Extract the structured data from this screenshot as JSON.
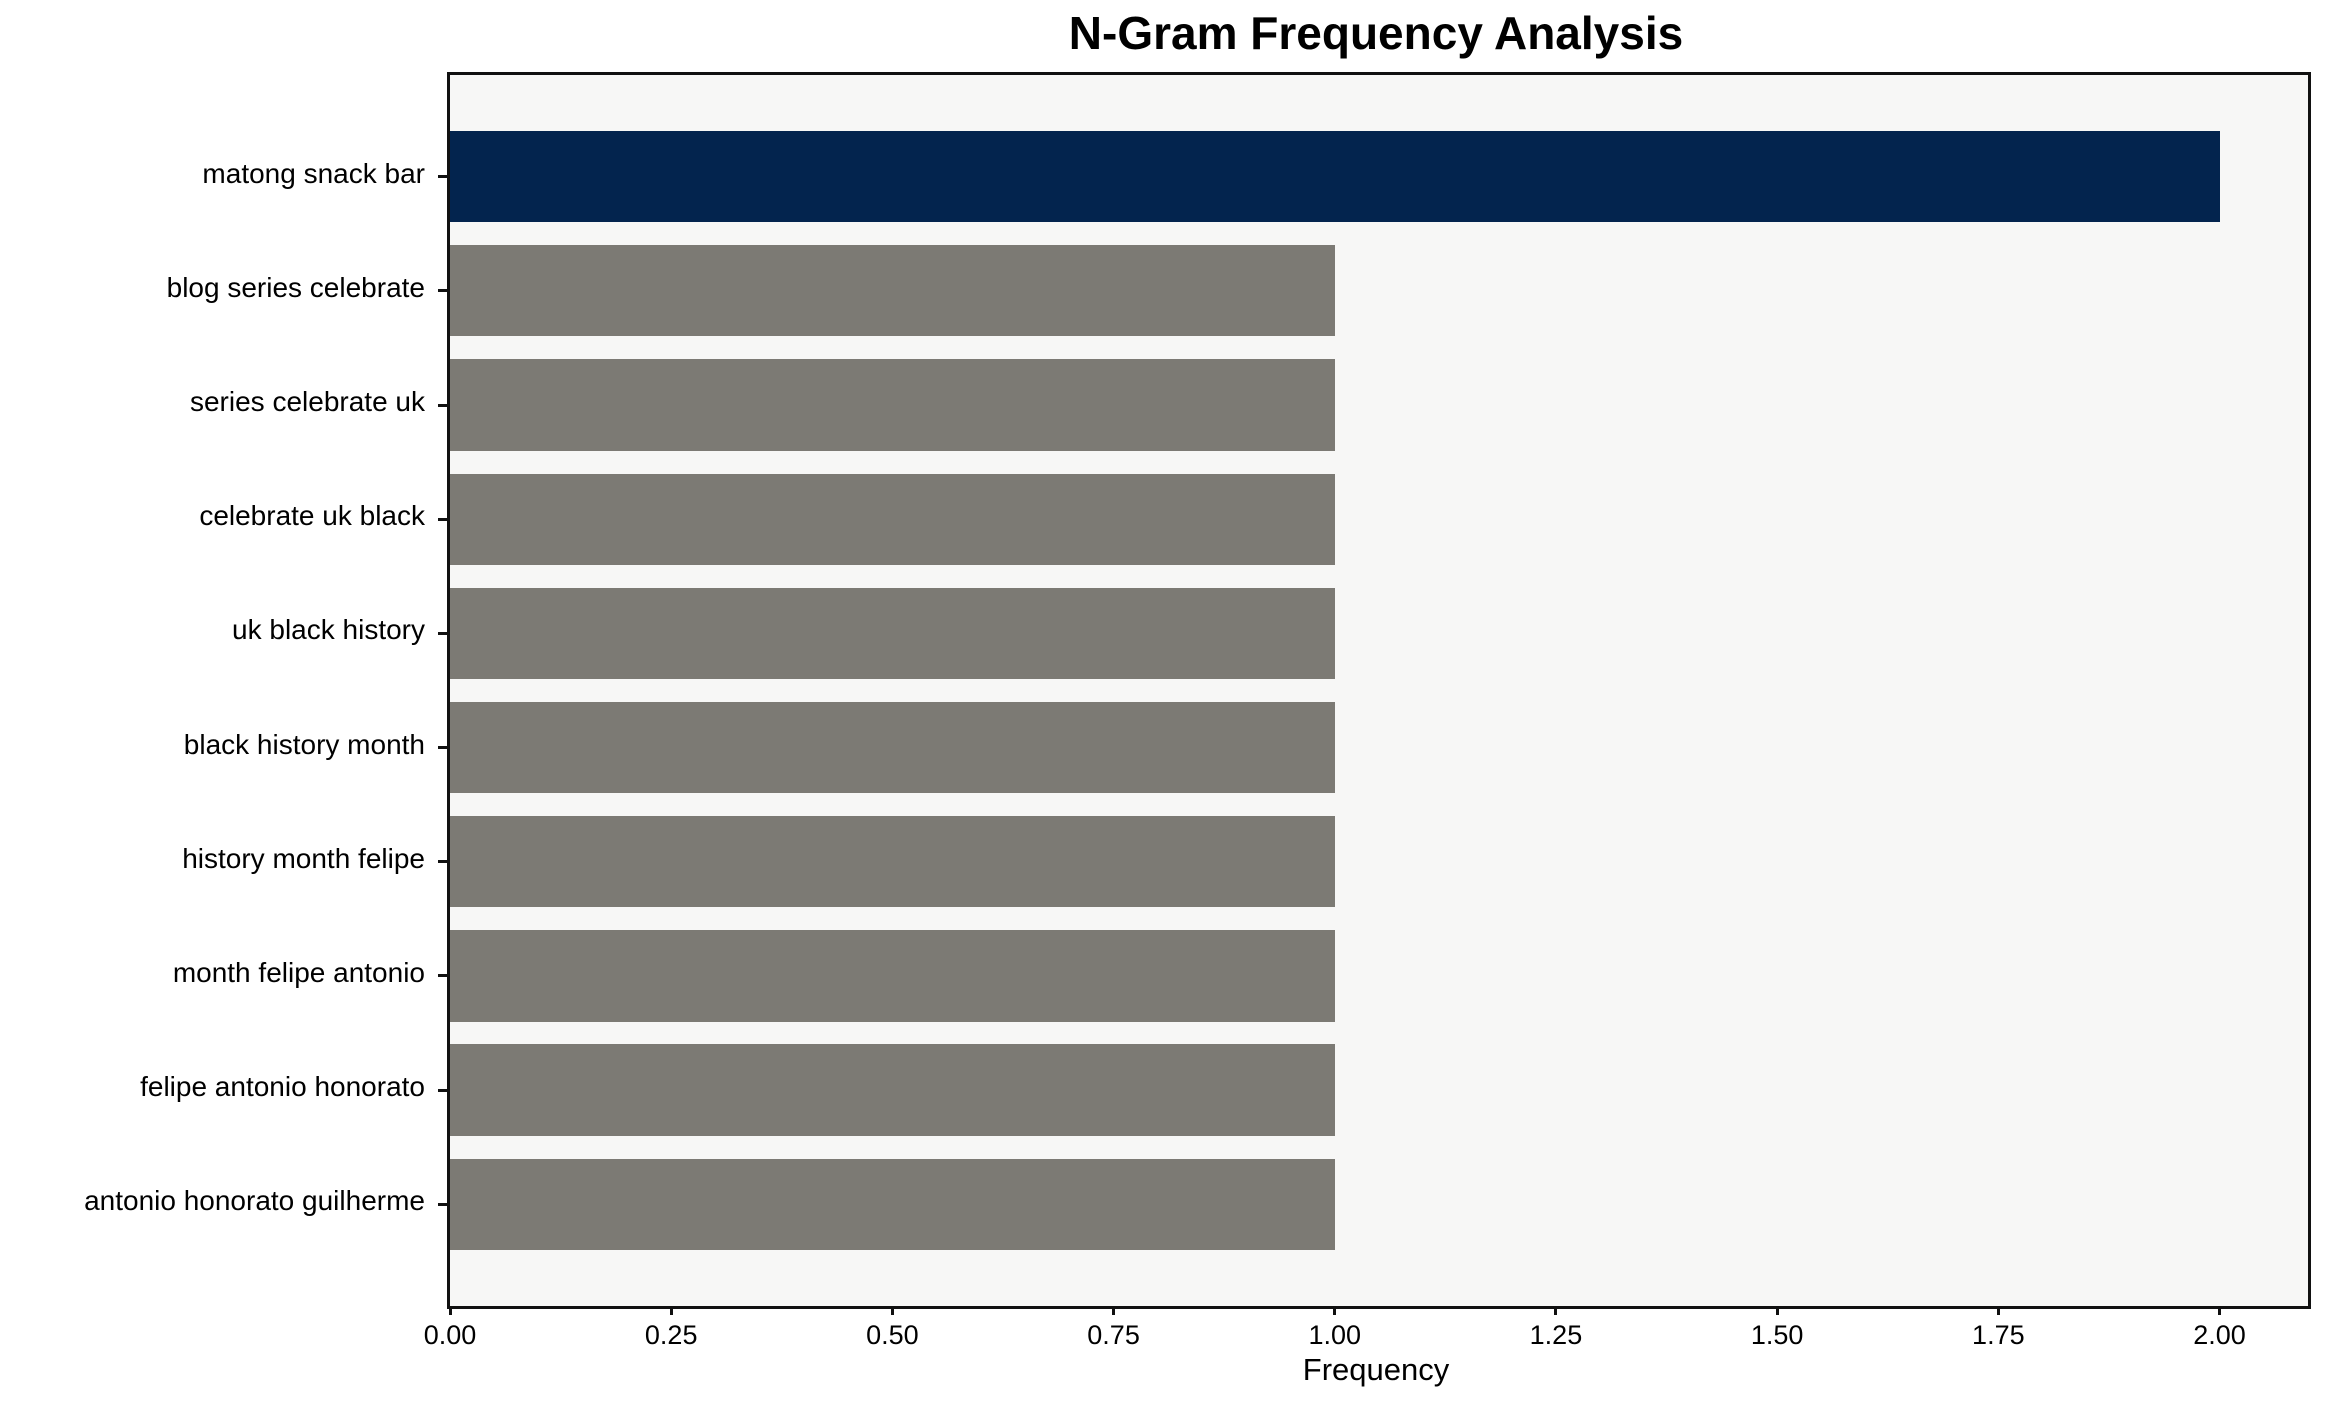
{
  "figure": {
    "title": "N-Gram Frequency Analysis",
    "xlabel": "Frequency"
  },
  "chart_data": {
    "type": "bar",
    "orientation": "horizontal",
    "title": "N-Gram Frequency Analysis",
    "xlabel": "Frequency",
    "ylabel": "",
    "categories": [
      "matong snack bar",
      "blog series celebrate",
      "series celebrate uk",
      "celebrate uk black",
      "uk black history",
      "black history month",
      "history month felipe",
      "month felipe antonio",
      "felipe antonio honorato",
      "antonio honorato guilherme"
    ],
    "values": [
      2,
      1,
      1,
      1,
      1,
      1,
      1,
      1,
      1,
      1
    ],
    "bar_colors": [
      "#03244e",
      "#7c7a74",
      "#7c7a74",
      "#7c7a74",
      "#7c7a74",
      "#7c7a74",
      "#7c7a74",
      "#7c7a74",
      "#7c7a74",
      "#7c7a74"
    ],
    "xlim": [
      0,
      2.1
    ],
    "xtick_labels": [
      "0.00",
      "0.25",
      "0.50",
      "0.75",
      "1.00",
      "1.25",
      "1.50",
      "1.75",
      "2.00"
    ],
    "xtick_values": [
      0,
      0.25,
      0.5,
      0.75,
      1.0,
      1.25,
      1.5,
      1.75,
      2.0
    ],
    "grid": false,
    "legend": null,
    "colors": {
      "bar_highlight": "#03244e",
      "bar_default": "#7c7a74",
      "plot_background": "#f7f7f6",
      "figure_background": "#ffffff",
      "spine": "#111111",
      "text": "#000000"
    }
  }
}
